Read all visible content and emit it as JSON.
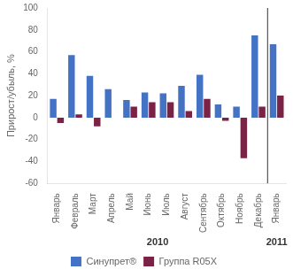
{
  "chart_data": {
    "type": "bar",
    "categories": [
      "Январь",
      "Февраль",
      "Март",
      "Апрель",
      "Май",
      "Июнь",
      "Июль",
      "Август",
      "Сентябрь",
      "Октябрь",
      "Ноябрь",
      "Декабрь",
      "Январь"
    ],
    "series": [
      {
        "name": "Синупрет®",
        "color": "#4472C4",
        "values": [
          17,
          57,
          38,
          26,
          16,
          23,
          22,
          29,
          39,
          12,
          10,
          75,
          67
        ]
      },
      {
        "name": "Группа R05X",
        "color": "#7B2346",
        "values": [
          -5,
          3,
          -8,
          0,
          10,
          14,
          14,
          6,
          17,
          -3,
          -37,
          10,
          20
        ]
      }
    ],
    "ylabel": "Прирост/убыль, %",
    "ylim": [
      -60,
      100
    ],
    "yticks": [
      -60,
      -40,
      -20,
      0,
      20,
      40,
      60,
      80,
      100
    ],
    "annotations": [
      "2010",
      "2011"
    ],
    "grid": false,
    "legend": "bottom"
  }
}
